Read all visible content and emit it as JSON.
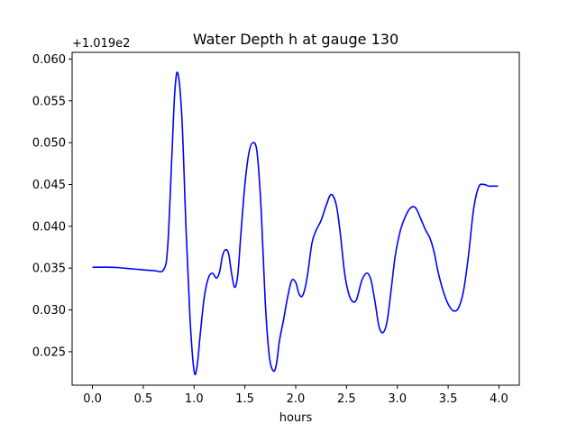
{
  "chart_data": {
    "type": "line",
    "title": "Water Depth h at gauge 130",
    "xlabel": "hours",
    "ylabel": "",
    "y_offset_label": "+1.019e2",
    "xlim": [
      -0.2,
      4.2
    ],
    "ylim": [
      0.021,
      0.0608
    ],
    "x_ticks": [
      0.0,
      0.5,
      1.0,
      1.5,
      2.0,
      2.5,
      3.0,
      3.5,
      4.0
    ],
    "x_tick_labels": [
      "0.0",
      "0.5",
      "1.0",
      "1.5",
      "2.0",
      "2.5",
      "3.0",
      "3.5",
      "4.0"
    ],
    "y_ticks": [
      0.025,
      0.03,
      0.035,
      0.04,
      0.045,
      0.05,
      0.055,
      0.06
    ],
    "y_tick_labels": [
      "0.025",
      "0.030",
      "0.035",
      "0.040",
      "0.045",
      "0.050",
      "0.055",
      "0.060"
    ],
    "grid": false,
    "colors": {
      "line": "#0000ff",
      "axes": "#000000"
    },
    "series": [
      {
        "x": [
          0.0,
          0.2,
          0.4,
          0.6,
          0.7,
          0.74,
          0.78,
          0.81,
          0.84,
          0.88,
          0.92,
          0.96,
          1.0,
          1.03,
          1.06,
          1.1,
          1.14,
          1.18,
          1.22,
          1.25,
          1.28,
          1.31,
          1.34,
          1.37,
          1.4,
          1.43,
          1.46,
          1.5,
          1.54,
          1.58,
          1.62,
          1.66,
          1.7,
          1.74,
          1.78,
          1.81,
          1.84,
          1.88,
          1.92,
          1.96,
          2.0,
          2.03,
          2.06,
          2.09,
          2.12,
          2.16,
          2.2,
          2.25,
          2.3,
          2.35,
          2.4,
          2.44,
          2.48,
          2.52,
          2.56,
          2.6,
          2.65,
          2.7,
          2.74,
          2.78,
          2.82,
          2.86,
          2.9,
          2.94,
          2.98,
          3.03,
          3.08,
          3.13,
          3.18,
          3.23,
          3.28,
          3.32,
          3.36,
          3.4,
          3.45,
          3.5,
          3.55,
          3.6,
          3.65,
          3.7,
          3.75,
          3.8,
          3.85,
          3.9,
          3.93,
          3.96,
          3.99
        ],
        "y": [
          0.0351,
          0.0351,
          0.0349,
          0.0347,
          0.0348,
          0.0375,
          0.048,
          0.056,
          0.0583,
          0.053,
          0.04,
          0.029,
          0.0227,
          0.0233,
          0.027,
          0.0315,
          0.0338,
          0.0344,
          0.0338,
          0.0345,
          0.0365,
          0.0372,
          0.0367,
          0.0343,
          0.0327,
          0.0342,
          0.039,
          0.045,
          0.0488,
          0.05,
          0.0488,
          0.042,
          0.031,
          0.0245,
          0.0227,
          0.0235,
          0.0263,
          0.0288,
          0.0315,
          0.0335,
          0.0333,
          0.032,
          0.0316,
          0.0325,
          0.0345,
          0.038,
          0.0395,
          0.0407,
          0.0425,
          0.0438,
          0.0425,
          0.039,
          0.0345,
          0.032,
          0.031,
          0.0313,
          0.0335,
          0.0344,
          0.0336,
          0.031,
          0.028,
          0.0273,
          0.0287,
          0.0325,
          0.0365,
          0.0395,
          0.0412,
          0.0422,
          0.0422,
          0.0409,
          0.0395,
          0.0386,
          0.037,
          0.0346,
          0.0323,
          0.0307,
          0.0299,
          0.0302,
          0.0322,
          0.0365,
          0.042,
          0.0447,
          0.045,
          0.0448,
          0.0448,
          0.0448,
          0.0448
        ]
      }
    ]
  }
}
